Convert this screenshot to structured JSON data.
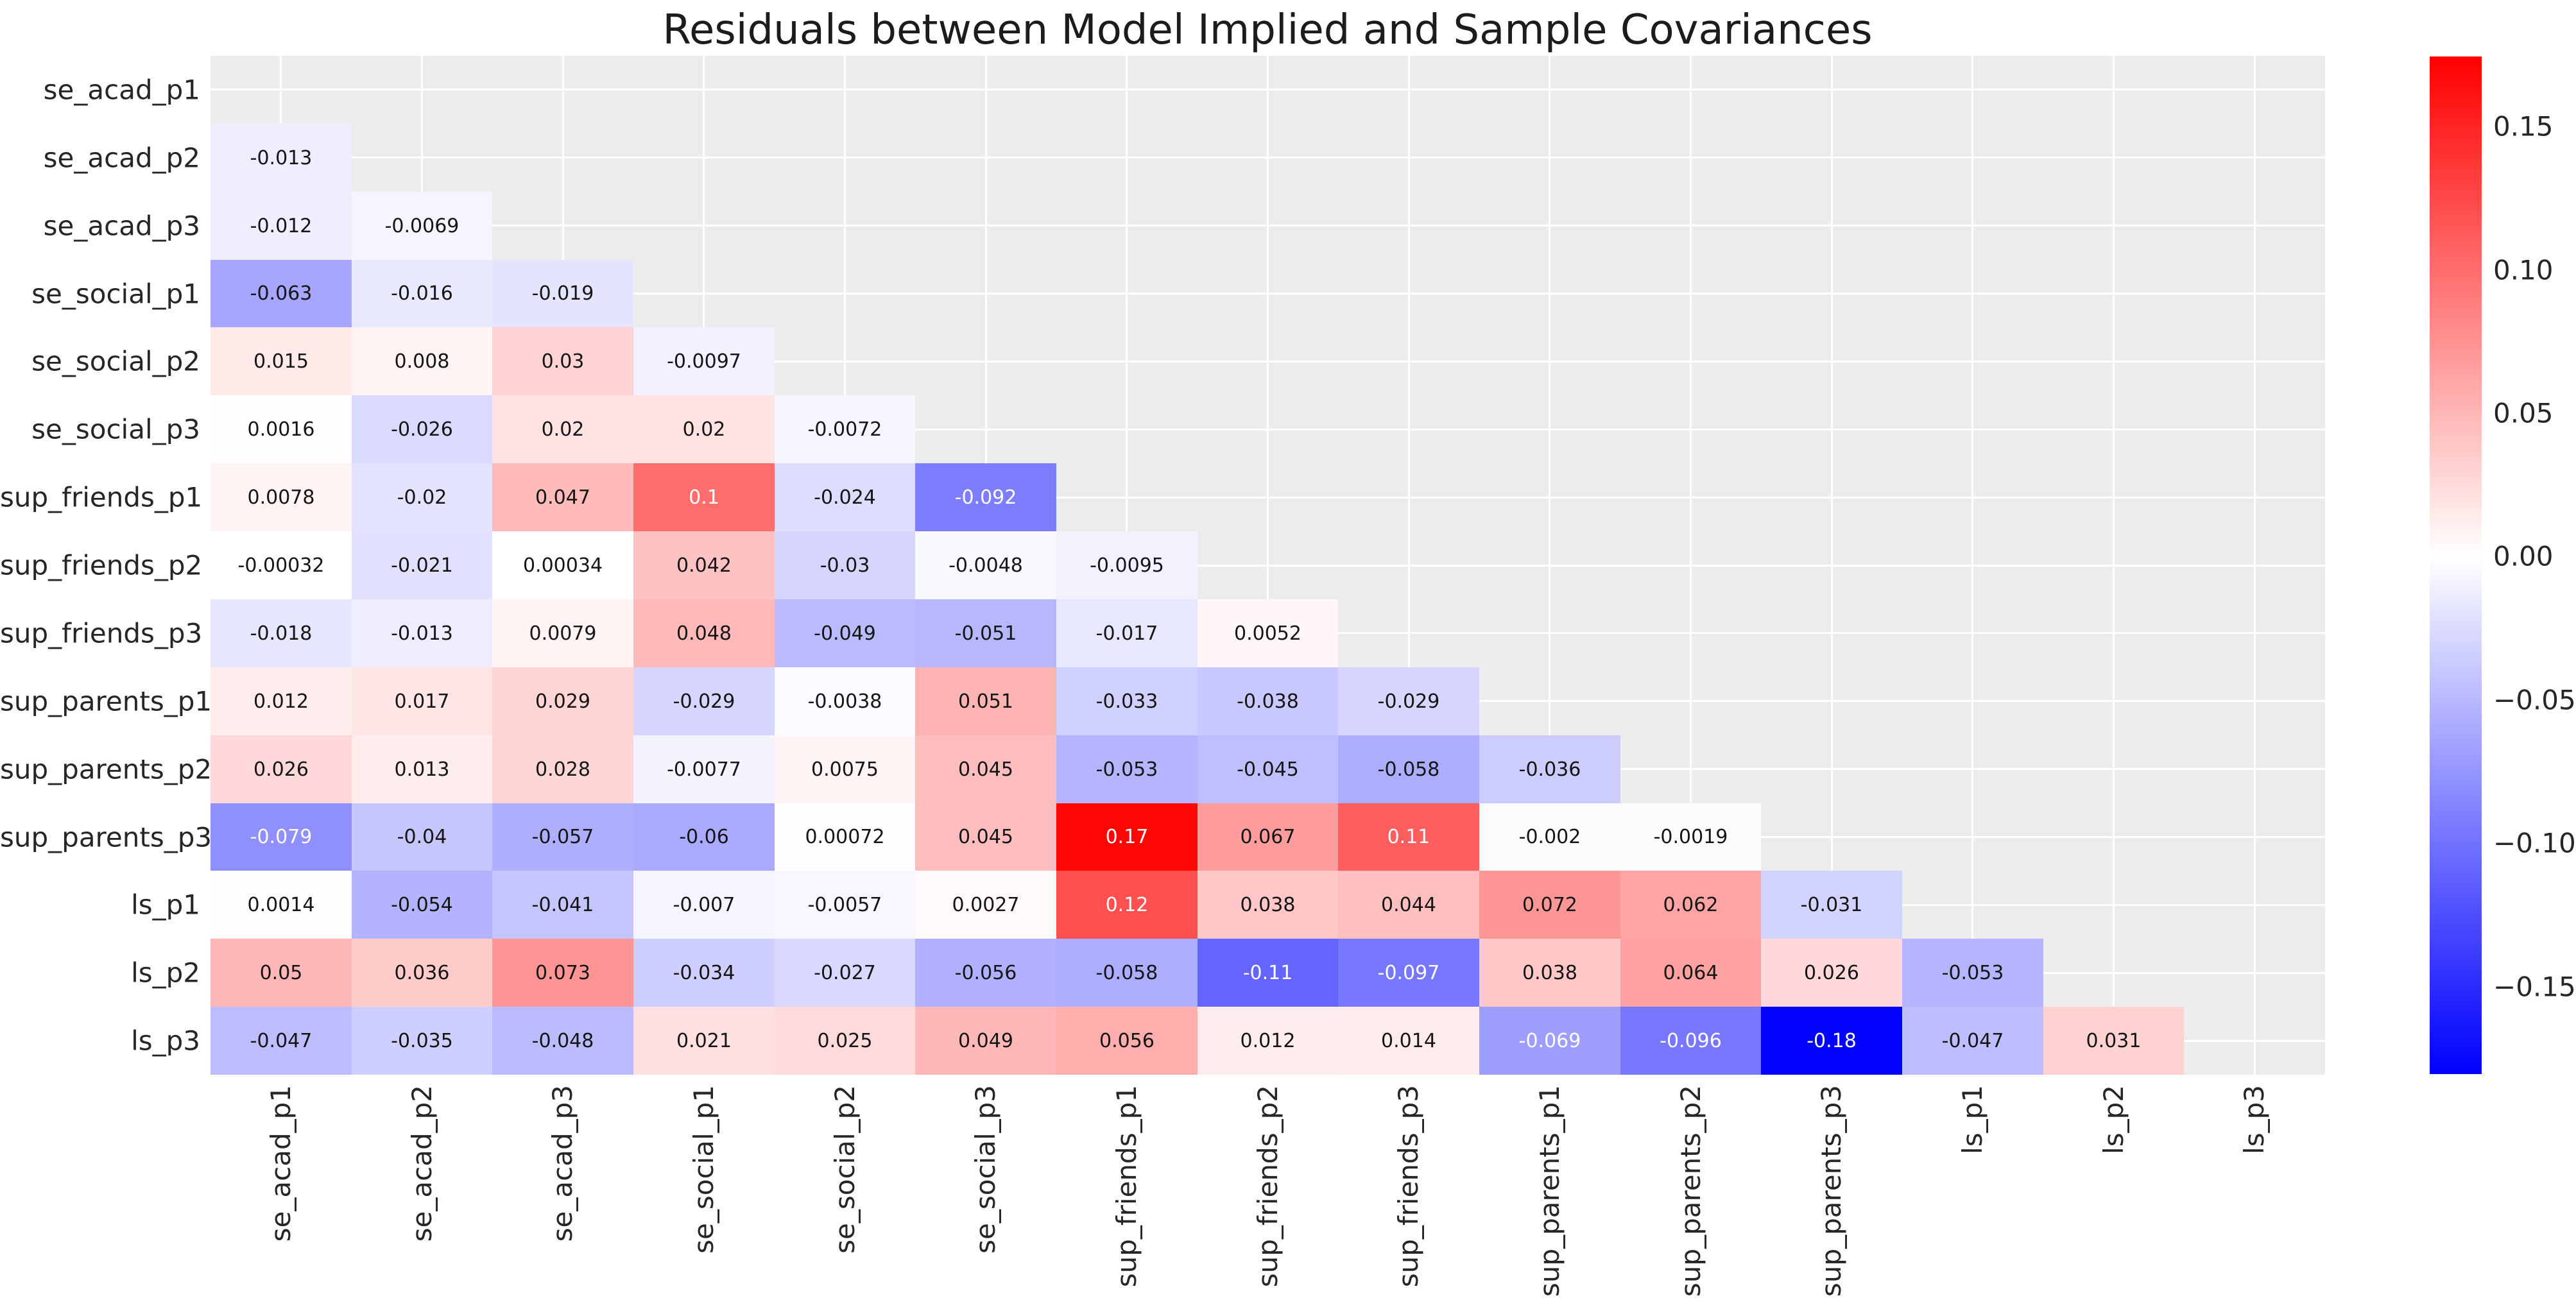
{
  "title": "Residuals between Model Implied and Sample Covariances",
  "chart_data": {
    "type": "heatmap",
    "title": "Residuals between Model Implied and Sample Covariances",
    "triangle": "lower",
    "masked_region": "diagonal and upper triangle shown as blank gray with white gridlines",
    "colormap": "blue-white-red",
    "vmin": -0.1805,
    "vmax": 0.1744,
    "grid": true,
    "legend_position": "colorbar-right",
    "x_labels": [
      "se_acad_p1",
      "se_acad_p2",
      "se_acad_p3",
      "se_social_p1",
      "se_social_p2",
      "se_social_p3",
      "sup_friends_p1",
      "sup_friends_p2",
      "sup_friends_p3",
      "sup_parents_p1",
      "sup_parents_p2",
      "sup_parents_p3",
      "ls_p1",
      "ls_p2",
      "ls_p3"
    ],
    "y_labels": [
      "se_acad_p1",
      "se_acad_p2",
      "se_acad_p3",
      "se_social_p1",
      "se_social_p2",
      "se_social_p3",
      "sup_friends_p1",
      "sup_friends_p2",
      "sup_friends_p3",
      "sup_parents_p1",
      "sup_parents_p2",
      "sup_parents_p3",
      "ls_p1",
      "ls_p2",
      "ls_p3"
    ],
    "matrix_lower_triangle": [
      [],
      [
        "-0.013"
      ],
      [
        "-0.012",
        "-0.0069"
      ],
      [
        "-0.063",
        "-0.016",
        "-0.019"
      ],
      [
        "0.015",
        "0.008",
        "0.03",
        "-0.0097"
      ],
      [
        "0.0016",
        "-0.026",
        "0.02",
        "0.02",
        "-0.0072"
      ],
      [
        "0.0078",
        "-0.02",
        "0.047",
        "0.1",
        "-0.024",
        "-0.092"
      ],
      [
        "-0.00032",
        "-0.021",
        "0.00034",
        "0.042",
        "-0.03",
        "-0.0048",
        "-0.0095"
      ],
      [
        "-0.018",
        "-0.013",
        "0.0079",
        "0.048",
        "-0.049",
        "-0.051",
        "-0.017",
        "0.0052"
      ],
      [
        "0.012",
        "0.017",
        "0.029",
        "-0.029",
        "-0.0038",
        "0.051",
        "-0.033",
        "-0.038",
        "-0.029"
      ],
      [
        "0.026",
        "0.013",
        "0.028",
        "-0.0077",
        "0.0075",
        "0.045",
        "-0.053",
        "-0.045",
        "-0.058",
        "-0.036"
      ],
      [
        "-0.079",
        "-0.04",
        "-0.057",
        "-0.06",
        "0.00072",
        "0.045",
        "0.17",
        "0.067",
        "0.11",
        "-0.002",
        "-0.0019"
      ],
      [
        "0.0014",
        "-0.054",
        "-0.041",
        "-0.007",
        "-0.0057",
        "0.0027",
        "0.12",
        "0.038",
        "0.044",
        "0.072",
        "0.062",
        "-0.031"
      ],
      [
        "0.05",
        "0.036",
        "0.073",
        "-0.034",
        "-0.027",
        "-0.056",
        "-0.058",
        "-0.11",
        "-0.097",
        "0.038",
        "0.064",
        "0.026",
        "-0.053"
      ],
      [
        "-0.047",
        "-0.035",
        "-0.048",
        "0.021",
        "0.025",
        "0.049",
        "0.056",
        "0.012",
        "0.014",
        "-0.069",
        "-0.096",
        "-0.18",
        "-0.047",
        "0.031"
      ]
    ],
    "colorbar": {
      "tick_labels": [
        "0.15",
        "0.10",
        "0.05",
        "0.00",
        "−0.05",
        "−0.10",
        "−0.15"
      ],
      "tick_values": [
        0.15,
        0.1,
        0.05,
        0.0,
        -0.05,
        -0.1,
        -0.15
      ],
      "top_color": "#ff0000",
      "mid_color": "#ffffff",
      "bottom_color": "#0000ff"
    }
  },
  "style": {
    "figure_bg": "#ffffff",
    "plot_bg": "#ececec",
    "grid_color": "#ffffff",
    "title_color": "#1c1c1c",
    "tick_label_color": "#262626",
    "annot_dark": "#151515",
    "annot_light": "#ffffff"
  }
}
